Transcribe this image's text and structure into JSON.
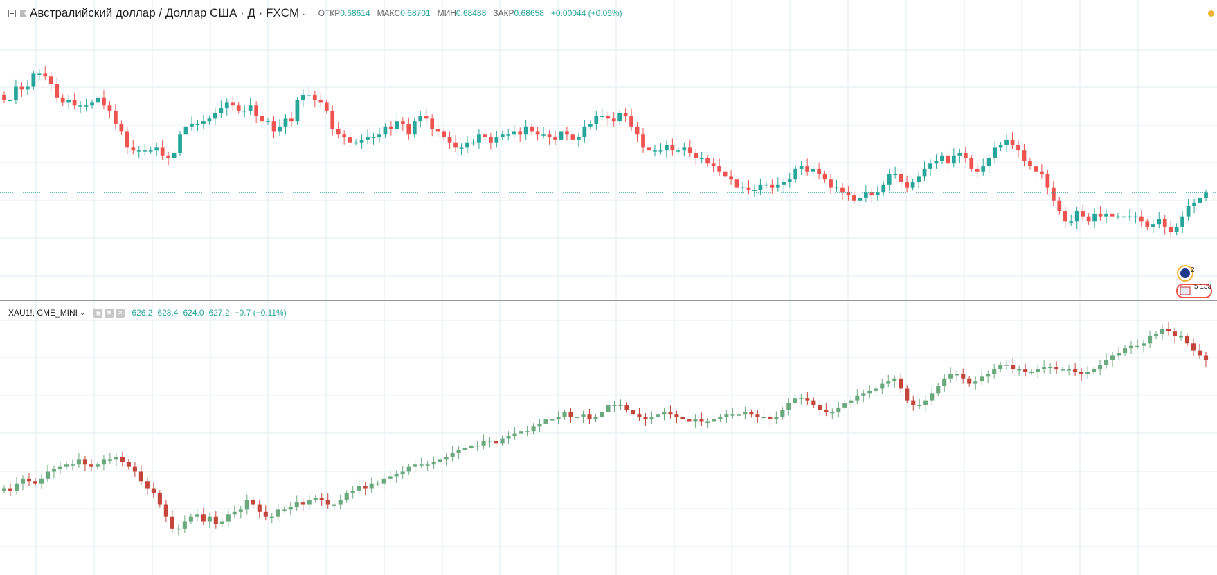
{
  "colors": {
    "up": "#26a69a",
    "down": "#ef5350",
    "up2": "#6aa97e",
    "down2": "#c4463a",
    "grid": "#e3ebf1",
    "price_line": "#26a69a",
    "separator": "#7c7c7c",
    "accent": "#f2b233"
  },
  "header": {
    "collapse_icon": "minus-square-icon",
    "flag_icon": "flag-icon",
    "symbol": "Австралийский доллар / Доллар США · Д · FXCM",
    "open_label": "ОТКР",
    "open_value": "0.68614",
    "high_label": "МАКС",
    "high_value": "0.68701",
    "low_label": "МИН",
    "low_value": "0.68488",
    "close_label": "ЗАКР",
    "close_value": "0.68658",
    "change": "+0.00044 (+0.06%)"
  },
  "header2": {
    "symbol": "XAU1!, CME_MINI",
    "buttons": [
      "eye-icon",
      "settings-icon",
      "close-icon"
    ],
    "open": "626.2",
    "high": "628.4",
    "low": "624.0",
    "close": "627.2",
    "change": "−0.7 (−0.11%)"
  },
  "events": {
    "au_count": "2",
    "us_count": "5 133"
  },
  "chart_data": [
    {
      "type": "candlestick",
      "series": [
        {
          "name": "Австралийский доллар / Доллар США",
          "closes": [
            0.7,
            0.7,
            0.75,
            0.74,
            0.75,
            0.8,
            0.8,
            0.79,
            0.76,
            0.71,
            0.69,
            0.7,
            0.68,
            0.68,
            0.68,
            0.69,
            0.71,
            0.68,
            0.66,
            0.61,
            0.58,
            0.52,
            0.51,
            0.51,
            0.51,
            0.51,
            0.52,
            0.49,
            0.48,
            0.5,
            0.57,
            0.6,
            0.61,
            0.61,
            0.62,
            0.63,
            0.65,
            0.67,
            0.69,
            0.68,
            0.66,
            0.66,
            0.68,
            0.64,
            0.62,
            0.62,
            0.58,
            0.6,
            0.63,
            0.62,
            0.7,
            0.72,
            0.72,
            0.7,
            0.69,
            0.66,
            0.59,
            0.57,
            0.56,
            0.54,
            0.54,
            0.55,
            0.56,
            0.56,
            0.57,
            0.6,
            0.59,
            0.62,
            0.61,
            0.57,
            0.62,
            0.64,
            0.63,
            0.59,
            0.58,
            0.56,
            0.54,
            0.52,
            0.52,
            0.54,
            0.54,
            0.57,
            0.56,
            0.54,
            0.56,
            0.57,
            0.57,
            0.58,
            0.57,
            0.6,
            0.58,
            0.57,
            0.57,
            0.56,
            0.55,
            0.58,
            0.57,
            0.55,
            0.56,
            0.6,
            0.61,
            0.64,
            0.64,
            0.63,
            0.62,
            0.65,
            0.64,
            0.6,
            0.57,
            0.52,
            0.51,
            0.51,
            0.51,
            0.53,
            0.51,
            0.51,
            0.52,
            0.5,
            0.48,
            0.48,
            0.46,
            0.45,
            0.43,
            0.41,
            0.4,
            0.37,
            0.37,
            0.36,
            0.36,
            0.38,
            0.38,
            0.37,
            0.38,
            0.39,
            0.4,
            0.44,
            0.45,
            0.43,
            0.44,
            0.42,
            0.4,
            0.37,
            0.37,
            0.35,
            0.34,
            0.32,
            0.33,
            0.35,
            0.34,
            0.35,
            0.38,
            0.42,
            0.42,
            0.39,
            0.37,
            0.39,
            0.41,
            0.44,
            0.46,
            0.47,
            0.49,
            0.46,
            0.49,
            0.5,
            0.48,
            0.44,
            0.43,
            0.45,
            0.48,
            0.52,
            0.53,
            0.55,
            0.53,
            0.51,
            0.47,
            0.45,
            0.43,
            0.42,
            0.37,
            0.32,
            0.28,
            0.24,
            0.24,
            0.28,
            0.26,
            0.24,
            0.27,
            0.26,
            0.27,
            0.26,
            0.26,
            0.26,
            0.26,
            0.26,
            0.24,
            0.22,
            0.23,
            0.25,
            0.22,
            0.2,
            0.22,
            0.26,
            0.3,
            0.31,
            0.33,
            0.35
          ],
          "opens_first": 0.72
        }
      ],
      "ylabel": "",
      "xlabel": ""
    },
    {
      "type": "candlestick",
      "series": [
        {
          "name": "XAU1!, CME_MINI",
          "closes": [
            0.29,
            0.28,
            0.31,
            0.33,
            0.32,
            0.31,
            0.33,
            0.36,
            0.37,
            0.38,
            0.39,
            0.39,
            0.41,
            0.39,
            0.38,
            0.39,
            0.41,
            0.41,
            0.42,
            0.4,
            0.38,
            0.36,
            0.32,
            0.29,
            0.27,
            0.22,
            0.17,
            0.12,
            0.12,
            0.15,
            0.17,
            0.18,
            0.15,
            0.17,
            0.14,
            0.15,
            0.18,
            0.19,
            0.2,
            0.24,
            0.22,
            0.19,
            0.17,
            0.17,
            0.2,
            0.2,
            0.21,
            0.23,
            0.22,
            0.24,
            0.25,
            0.24,
            0.22,
            0.22,
            0.24,
            0.27,
            0.28,
            0.3,
            0.29,
            0.31,
            0.31,
            0.33,
            0.34,
            0.35,
            0.36,
            0.38,
            0.39,
            0.39,
            0.39,
            0.4,
            0.41,
            0.42,
            0.44,
            0.45,
            0.46,
            0.47,
            0.47,
            0.49,
            0.49,
            0.48,
            0.5,
            0.51,
            0.52,
            0.53,
            0.53,
            0.55,
            0.56,
            0.58,
            0.58,
            0.59,
            0.61,
            0.59,
            0.59,
            0.6,
            0.58,
            0.59,
            0.61,
            0.64,
            0.64,
            0.64,
            0.62,
            0.6,
            0.59,
            0.58,
            0.59,
            0.6,
            0.61,
            0.6,
            0.59,
            0.58,
            0.57,
            0.58,
            0.57,
            0.57,
            0.58,
            0.59,
            0.6,
            0.6,
            0.6,
            0.61,
            0.6,
            0.59,
            0.59,
            0.58,
            0.59,
            0.62,
            0.65,
            0.67,
            0.67,
            0.66,
            0.64,
            0.62,
            0.61,
            0.61,
            0.63,
            0.65,
            0.66,
            0.68,
            0.69,
            0.7,
            0.71,
            0.73,
            0.74,
            0.75,
            0.71,
            0.66,
            0.64,
            0.64,
            0.66,
            0.69,
            0.72,
            0.75,
            0.77,
            0.77,
            0.75,
            0.73,
            0.74,
            0.76,
            0.77,
            0.79,
            0.81,
            0.81,
            0.79,
            0.79,
            0.78,
            0.78,
            0.79,
            0.8,
            0.8,
            0.79,
            0.79,
            0.79,
            0.78,
            0.77,
            0.78,
            0.79,
            0.81,
            0.83,
            0.85,
            0.86,
            0.88,
            0.89,
            0.89,
            0.9,
            0.93,
            0.94,
            0.96,
            0.95,
            0.93,
            0.93,
            0.9,
            0.87,
            0.85,
            0.83
          ],
          "opens_first": 0.28
        }
      ],
      "ylabel": "",
      "xlabel": ""
    }
  ]
}
